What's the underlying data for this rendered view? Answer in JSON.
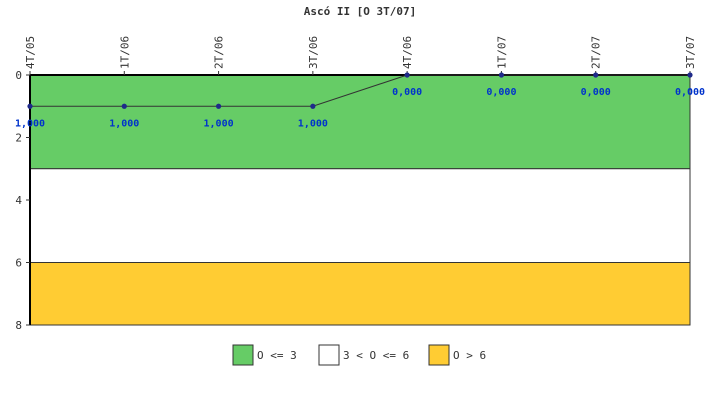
{
  "chart_data": {
    "type": "line",
    "title": "Ascó II [O 3T/07]",
    "categories": [
      "4T/05",
      "1T/06",
      "2T/06",
      "3T/06",
      "4T/06",
      "1T/07",
      "2T/07",
      "3T/07"
    ],
    "series": [
      {
        "values": [
          1,
          1,
          1,
          1,
          0,
          0,
          0,
          0
        ],
        "labels": [
          "1,000",
          "1,000",
          "1,000",
          "1,000",
          "0,000",
          "0,000",
          "0,000",
          "0,000"
        ],
        "color": "#1f2a8a"
      }
    ],
    "ylim": [
      0,
      8
    ],
    "y_inverted": true,
    "y_ticks": [
      0,
      2,
      4,
      6,
      8
    ],
    "bands": [
      {
        "label": "O <= 3",
        "from": 0,
        "to": 3,
        "color": "#66cc66"
      },
      {
        "label": "3 < O <= 6",
        "from": 3,
        "to": 6,
        "color": "#ffffff"
      },
      {
        "label": "O > 6",
        "from": 6,
        "to": 8,
        "color": "#ffcc33"
      }
    ],
    "legend_position": "bottom",
    "grid": false
  }
}
